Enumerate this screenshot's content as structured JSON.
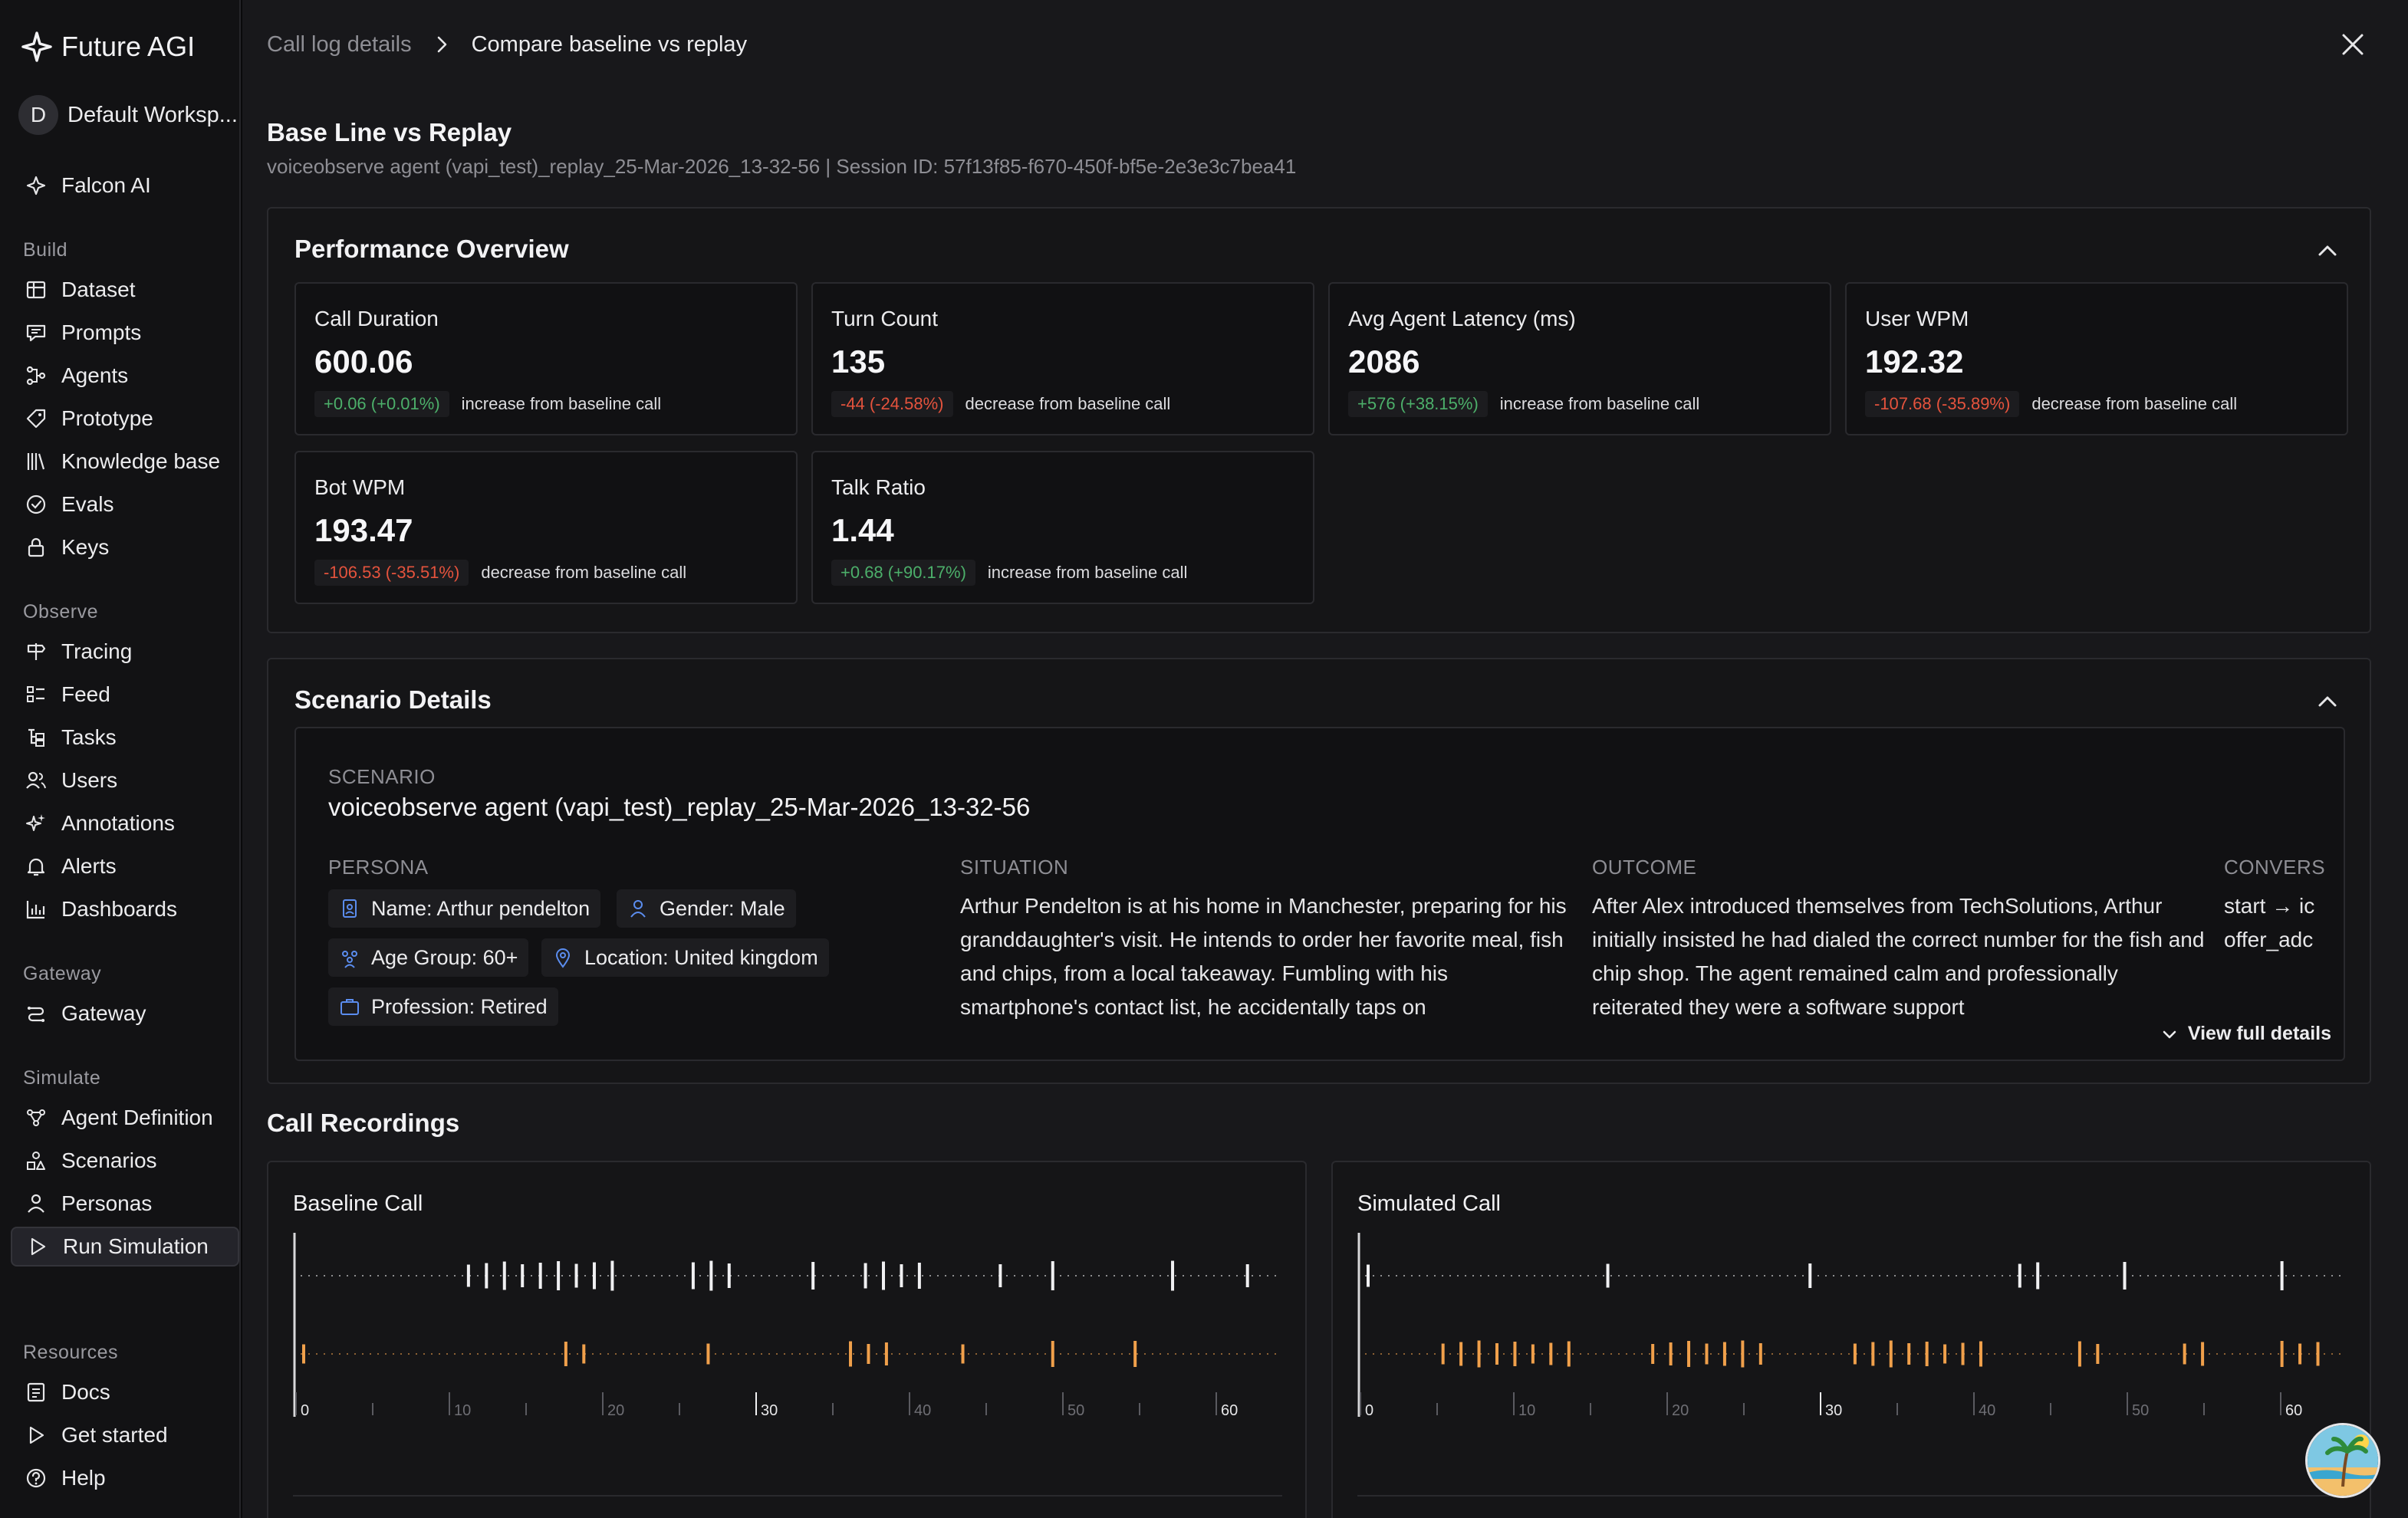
{
  "brand": {
    "name": "Future AGI"
  },
  "workspace": {
    "initial": "D",
    "name": "Default Worksp..."
  },
  "sidebar": {
    "top_item": {
      "label": "Falcon AI",
      "icon": "falcon-icon"
    },
    "sections": [
      {
        "title": "Build",
        "items": [
          {
            "label": "Dataset",
            "icon": "table-icon"
          },
          {
            "label": "Prompts",
            "icon": "chat-icon"
          },
          {
            "label": "Agents",
            "icon": "flow-icon"
          },
          {
            "label": "Prototype",
            "icon": "tag-icon"
          },
          {
            "label": "Knowledge base",
            "icon": "books-icon"
          },
          {
            "label": "Evals",
            "icon": "check-circle-icon"
          },
          {
            "label": "Keys",
            "icon": "lock-icon"
          }
        ]
      },
      {
        "title": "Observe",
        "items": [
          {
            "label": "Tracing",
            "icon": "signpost-icon"
          },
          {
            "label": "Feed",
            "icon": "list-icon"
          },
          {
            "label": "Tasks",
            "icon": "tree-icon"
          },
          {
            "label": "Users",
            "icon": "users-icon"
          },
          {
            "label": "Annotations",
            "icon": "sparkle-icon"
          },
          {
            "label": "Alerts",
            "icon": "bell-icon"
          },
          {
            "label": "Dashboards",
            "icon": "bar-chart-icon"
          }
        ]
      },
      {
        "title": "Gateway",
        "items": [
          {
            "label": "Gateway",
            "icon": "gateway-icon"
          }
        ]
      },
      {
        "title": "Simulate",
        "items": [
          {
            "label": "Agent Definition",
            "icon": "nodes-icon"
          },
          {
            "label": "Scenarios",
            "icon": "shapes-icon"
          },
          {
            "label": "Personas",
            "icon": "person-icon"
          },
          {
            "label": "Run Simulation",
            "icon": "play-icon",
            "active": true
          }
        ]
      },
      {
        "title": "Resources",
        "items": [
          {
            "label": "Docs",
            "icon": "doc-icon"
          },
          {
            "label": "Get started",
            "icon": "play-icon"
          },
          {
            "label": "Help",
            "icon": "help-icon"
          }
        ]
      }
    ]
  },
  "breadcrumb": {
    "parent": "Call log details",
    "current": "Compare baseline vs replay"
  },
  "page": {
    "title": "Base Line vs Replay",
    "subtitle": "voiceobserve agent (vapi_test)_replay_25-Mar-2026_13-32-56 | Session ID: 57f13f85-f670-450f-bf5e-2e3e3c7bea41"
  },
  "performance": {
    "title": "Performance Overview",
    "metrics": [
      {
        "label": "Call Duration",
        "value": "600.06",
        "delta": "+0.06 (+0.01%)",
        "trend": "pos",
        "desc": "increase from baseline call"
      },
      {
        "label": "Turn Count",
        "value": "135",
        "delta": "-44 (-24.58%)",
        "trend": "neg",
        "desc": "decrease from baseline call"
      },
      {
        "label": "Avg Agent Latency (ms)",
        "value": "2086",
        "delta": "+576 (+38.15%)",
        "trend": "pos",
        "desc": "increase from baseline call"
      },
      {
        "label": "User WPM",
        "value": "192.32",
        "delta": "-107.68 (-35.89%)",
        "trend": "neg",
        "desc": "decrease from baseline call"
      },
      {
        "label": "Bot WPM",
        "value": "193.47",
        "delta": "-106.53 (-35.51%)",
        "trend": "neg",
        "desc": "decrease from baseline call"
      },
      {
        "label": "Talk Ratio",
        "value": "1.44",
        "delta": "+0.68 (+90.17%)",
        "trend": "pos",
        "desc": "increase from baseline call"
      }
    ]
  },
  "scenario": {
    "title": "Scenario Details",
    "scenario_label": "SCENARIO",
    "scenario_name": "voiceobserve agent (vapi_test)_replay_25-Mar-2026_13-32-56",
    "persona_label": "PERSONA",
    "persona": {
      "name": "Name: Arthur pendelton",
      "gender": "Gender: Male",
      "age": "Age Group: 60+",
      "location": "Location: United kingdom",
      "profession": "Profession: Retired"
    },
    "situation_label": "SITUATION",
    "situation": "Arthur Pendelton is at his home in Manchester, preparing for his granddaughter's visit. He intends to order her favorite meal, fish and chips, from a local takeaway. Fumbling with his smartphone's contact list, he accidentally taps on",
    "outcome_label": "OUTCOME",
    "outcome": "After Alex introduced themselves from TechSolutions, Arthur initially insisted he had dialed the correct number for the fish and chip shop. The agent remained calm and professionally reiterated they were a software support",
    "conversation_label": "CONVERS",
    "conversation": "start → ic offer_adc",
    "view_full": "View full details"
  },
  "recordings": {
    "title": "Call Recordings",
    "colors": {
      "agent": "#f0f0f2",
      "user": "#f0a04b"
    },
    "axis_ticks": [
      "0",
      "10",
      "20",
      "30",
      "40",
      "50",
      "60"
    ],
    "baseline": {
      "title": "Baseline Call",
      "agent_segments": [
        [
          110,
          210
        ],
        [
          260,
          295
        ],
        [
          340,
          350
        ],
        [
          375,
          415
        ],
        [
          465,
          475
        ],
        [
          500,
          510
        ],
        [
          580,
          590
        ],
        [
          630,
          638
        ]
      ],
      "user_segments": [
        [
          0,
          10
        ],
        [
          175,
          190
        ],
        [
          270,
          275
        ],
        [
          365,
          390
        ],
        [
          440,
          450
        ],
        [
          500,
          505
        ],
        [
          555,
          562
        ]
      ]
    },
    "simulated": {
      "title": "Simulated Call",
      "agent_segments": [
        [
          0,
          10
        ],
        [
          160,
          170
        ],
        [
          295,
          305
        ],
        [
          435,
          450
        ],
        [
          505,
          515
        ],
        [
          610,
          620
        ],
        [
          735,
          742
        ]
      ],
      "user_segments": [
        [
          50,
          140
        ],
        [
          190,
          270
        ],
        [
          325,
          420
        ],
        [
          475,
          490
        ],
        [
          545,
          560
        ],
        [
          610,
          640
        ]
      ]
    }
  }
}
